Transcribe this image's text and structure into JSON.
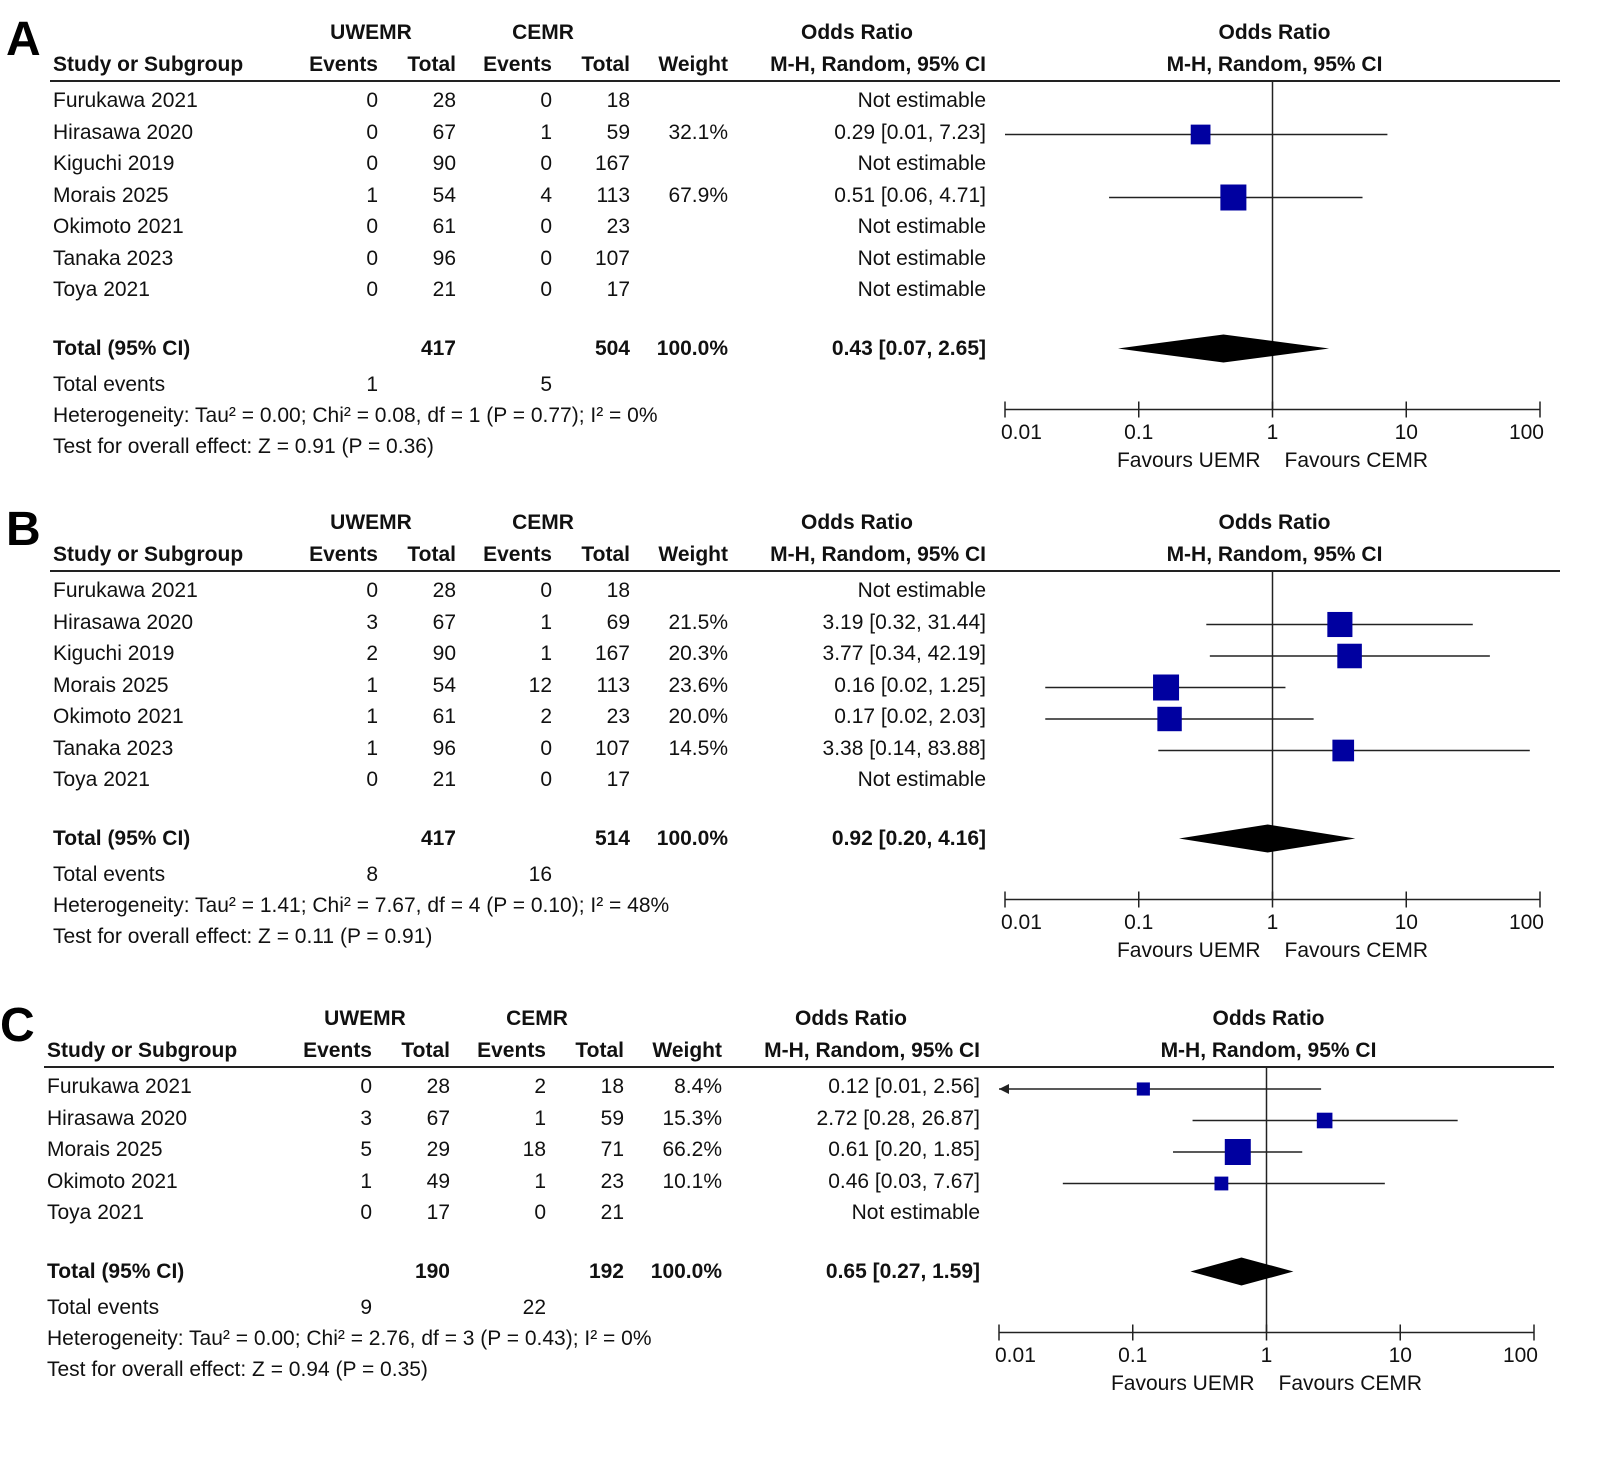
{
  "headers": {
    "group1": "UWEMR",
    "group2": "CEMR",
    "odds_ratio": "Odds Ratio",
    "study": "Study or Subgroup",
    "events": "Events",
    "total": "Total",
    "weight": "Weight",
    "method": "M-H, Random, 95% CI",
    "total_row": "Total (95% CI)",
    "total_events": "Total events",
    "favours_left": "Favours UEMR",
    "favours_right": "Favours CEMR"
  },
  "axis_ticks": [
    "0.01",
    "0.1",
    "1",
    "10",
    "100"
  ],
  "chart_data": [
    {
      "type": "forest",
      "panel": "A",
      "x_scale": "log",
      "xlim": [
        0.01,
        100
      ],
      "rows": [
        {
          "study": "Furukawa 2021",
          "e1": "0",
          "n1": "28",
          "e2": "0",
          "n2": "18",
          "weight": "",
          "ci_text": "Not estimable",
          "or": null
        },
        {
          "study": "Hirasawa 2020",
          "e1": "0",
          "n1": "67",
          "e2": "1",
          "n2": "59",
          "weight": "32.1%",
          "ci_text": "0.29 [0.01, 7.23]",
          "or": 0.29,
          "lo": 0.01,
          "hi": 7.23,
          "w": 32.1
        },
        {
          "study": "Kiguchi 2019",
          "e1": "0",
          "n1": "90",
          "e2": "0",
          "n2": "167",
          "weight": "",
          "ci_text": "Not estimable",
          "or": null
        },
        {
          "study": "Morais 2025",
          "e1": "1",
          "n1": "54",
          "e2": "4",
          "n2": "113",
          "weight": "67.9%",
          "ci_text": "0.51 [0.06, 4.71]",
          "or": 0.51,
          "lo": 0.06,
          "hi": 4.71,
          "w": 67.9
        },
        {
          "study": "Okimoto 2021",
          "e1": "0",
          "n1": "61",
          "e2": "0",
          "n2": "23",
          "weight": "",
          "ci_text": "Not estimable",
          "or": null
        },
        {
          "study": "Tanaka 2023",
          "e1": "0",
          "n1": "96",
          "e2": "0",
          "n2": "107",
          "weight": "",
          "ci_text": "Not estimable",
          "or": null
        },
        {
          "study": "Toya 2021",
          "e1": "0",
          "n1": "21",
          "e2": "0",
          "n2": "17",
          "weight": "",
          "ci_text": "Not estimable",
          "or": null
        }
      ],
      "total": {
        "n1": "417",
        "n2": "504",
        "weight": "100.0%",
        "ci_text": "0.43 [0.07, 2.65]",
        "or": 0.43,
        "lo": 0.07,
        "hi": 2.65
      },
      "total_events": {
        "e1": "1",
        "e2": "5"
      },
      "heterogeneity": "Heterogeneity: Tau² = 0.00; Chi² = 0.08, df = 1 (P = 0.77); I² = 0%",
      "overall_effect": "Test for overall effect: Z = 0.91 (P = 0.36)"
    },
    {
      "type": "forest",
      "panel": "B",
      "x_scale": "log",
      "xlim": [
        0.01,
        100
      ],
      "rows": [
        {
          "study": "Furukawa 2021",
          "e1": "0",
          "n1": "28",
          "e2": "0",
          "n2": "18",
          "weight": "",
          "ci_text": "Not estimable",
          "or": null
        },
        {
          "study": "Hirasawa 2020",
          "e1": "3",
          "n1": "67",
          "e2": "1",
          "n2": "69",
          "weight": "21.5%",
          "ci_text": "3.19 [0.32, 31.44]",
          "or": 3.19,
          "lo": 0.32,
          "hi": 31.44,
          "w": 21.5
        },
        {
          "study": "Kiguchi 2019",
          "e1": "2",
          "n1": "90",
          "e2": "1",
          "n2": "167",
          "weight": "20.3%",
          "ci_text": "3.77 [0.34, 42.19]",
          "or": 3.77,
          "lo": 0.34,
          "hi": 42.19,
          "w": 20.3
        },
        {
          "study": "Morais 2025",
          "e1": "1",
          "n1": "54",
          "e2": "12",
          "n2": "113",
          "weight": "23.6%",
          "ci_text": "0.16 [0.02, 1.25]",
          "or": 0.16,
          "lo": 0.02,
          "hi": 1.25,
          "w": 23.6
        },
        {
          "study": "Okimoto 2021",
          "e1": "1",
          "n1": "61",
          "e2": "2",
          "n2": "23",
          "weight": "20.0%",
          "ci_text": "0.17 [0.02, 2.03]",
          "or": 0.17,
          "lo": 0.02,
          "hi": 2.03,
          "w": 20.0
        },
        {
          "study": "Tanaka 2023",
          "e1": "1",
          "n1": "96",
          "e2": "0",
          "n2": "107",
          "weight": "14.5%",
          "ci_text": "3.38 [0.14, 83.88]",
          "or": 3.38,
          "lo": 0.14,
          "hi": 83.88,
          "w": 14.5
        },
        {
          "study": "Toya 2021",
          "e1": "0",
          "n1": "21",
          "e2": "0",
          "n2": "17",
          "weight": "",
          "ci_text": "Not estimable",
          "or": null
        }
      ],
      "total": {
        "n1": "417",
        "n2": "514",
        "weight": "100.0%",
        "ci_text": "0.92 [0.20, 4.16]",
        "or": 0.92,
        "lo": 0.2,
        "hi": 4.16
      },
      "total_events": {
        "e1": "8",
        "e2": "16"
      },
      "heterogeneity": "Heterogeneity: Tau² = 1.41; Chi² = 7.67, df = 4 (P = 0.10); I² = 48%",
      "overall_effect": "Test for overall effect: Z = 0.11 (P = 0.91)"
    },
    {
      "type": "forest",
      "panel": "C",
      "x_scale": "log",
      "xlim": [
        0.01,
        100
      ],
      "rows": [
        {
          "study": "Furukawa 2021",
          "e1": "0",
          "n1": "28",
          "e2": "2",
          "n2": "18",
          "weight": "8.4%",
          "ci_text": "0.12 [0.01, 2.56]",
          "or": 0.12,
          "lo": 0.01,
          "hi": 2.56,
          "w": 8.4
        },
        {
          "study": "Hirasawa 2020",
          "e1": "3",
          "n1": "67",
          "e2": "1",
          "n2": "59",
          "weight": "15.3%",
          "ci_text": "2.72 [0.28, 26.87]",
          "or": 2.72,
          "lo": 0.28,
          "hi": 26.87,
          "w": 15.3
        },
        {
          "study": "Morais 2025",
          "e1": "5",
          "n1": "29",
          "e2": "18",
          "n2": "71",
          "weight": "66.2%",
          "ci_text": "0.61 [0.20, 1.85]",
          "or": 0.61,
          "lo": 0.2,
          "hi": 1.85,
          "w": 66.2
        },
        {
          "study": "Okimoto 2021",
          "e1": "1",
          "n1": "49",
          "e2": "1",
          "n2": "23",
          "weight": "10.1%",
          "ci_text": "0.46 [0.03, 7.67]",
          "or": 0.46,
          "lo": 0.03,
          "hi": 7.67,
          "w": 10.1
        },
        {
          "study": "Toya 2021",
          "e1": "0",
          "n1": "17",
          "e2": "0",
          "n2": "21",
          "weight": "",
          "ci_text": "Not estimable",
          "or": null
        }
      ],
      "total": {
        "n1": "190",
        "n2": "192",
        "weight": "100.0%",
        "ci_text": "0.65 [0.27, 1.59]",
        "or": 0.65,
        "lo": 0.27,
        "hi": 1.59
      },
      "total_events": {
        "e1": "9",
        "e2": "22"
      },
      "heterogeneity": "Heterogeneity: Tau² = 0.00; Chi² = 2.76, df = 3 (P = 0.43); I² = 0%",
      "overall_effect": "Test for overall effect: Z = 0.94 (P = 0.35)"
    }
  ],
  "colors": {
    "marker": "#0000a0",
    "diamond": "#000000",
    "line": "#222222"
  }
}
